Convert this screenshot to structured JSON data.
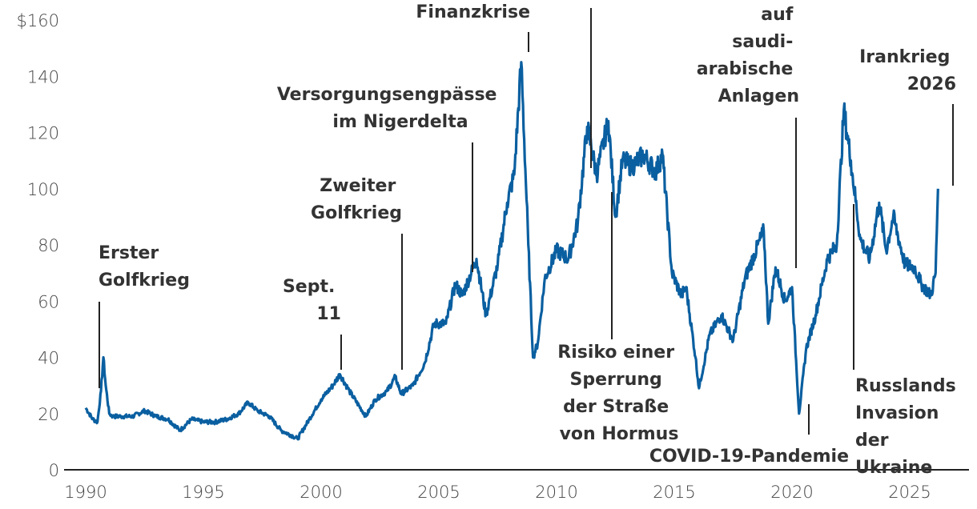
{
  "chart_data": {
    "type": "line",
    "title": "",
    "xlabel": "",
    "ylabel": "",
    "xlim": [
      1989.5,
      2027.2
    ],
    "ylim": [
      0,
      160
    ],
    "grid": false,
    "line_color": "#0a5fa0",
    "x_ticks": [
      "1990",
      "1995",
      "2000",
      "2005",
      "2010",
      "2015",
      "2020",
      "2025"
    ],
    "y_ticks": [
      "0",
      "20",
      "40",
      "60",
      "80",
      "100",
      "120",
      "140",
      "$160"
    ],
    "series": [
      {
        "x": [
          1990.0,
          1990.3,
          1990.5,
          1990.65,
          1990.75,
          1990.85,
          1991.0,
          1991.15,
          1991.5,
          1992.0,
          1992.5,
          1993.0,
          1993.5,
          1994.0,
          1994.5,
          1995.0,
          1995.5,
          1996.0,
          1996.5,
          1996.9,
          1997.3,
          1997.8,
          1998.3,
          1998.8,
          1999.0,
          1999.5,
          2000.0,
          2000.5,
          2000.8,
          2001.2,
          2001.9,
          2002.3,
          2002.8,
          2003.15,
          2003.4,
          2003.9,
          2004.4,
          2004.8,
          2005.3,
          2005.7,
          2006.0,
          2006.6,
          2007.0,
          2007.5,
          2007.9,
          2008.2,
          2008.5,
          2008.8,
          2009.0,
          2009.2,
          2009.5,
          2010.0,
          2010.5,
          2010.9,
          2011.3,
          2011.7,
          2012.2,
          2012.5,
          2012.8,
          2013.2,
          2013.7,
          2014.2,
          2014.5,
          2014.9,
          2015.3,
          2015.5,
          2015.9,
          2016.05,
          2016.5,
          2017.0,
          2017.5,
          2018.0,
          2018.8,
          2018.99,
          2019.3,
          2019.7,
          2020.0,
          2020.3,
          2020.6,
          2021.0,
          2021.5,
          2021.9,
          2022.2,
          2022.5,
          2022.9,
          2023.3,
          2023.7,
          2024.0,
          2024.3,
          2024.8,
          2025.2,
          2025.5,
          2025.9,
          2026.1,
          2026.2
        ],
        "values": [
          22,
          18,
          17,
          28,
          40,
          30,
          20,
          19,
          19,
          19,
          21,
          19,
          18,
          14,
          18,
          17,
          17,
          18,
          20,
          24,
          21,
          19,
          14,
          12,
          11,
          18,
          25,
          30,
          34,
          28,
          19,
          25,
          28,
          33,
          27,
          30,
          38,
          52,
          52,
          66,
          62,
          75,
          55,
          73,
          95,
          105,
          145,
          80,
          40,
          45,
          68,
          78,
          75,
          88,
          122,
          105,
          124,
          90,
          110,
          108,
          112,
          106,
          112,
          70,
          62,
          65,
          40,
          29,
          48,
          55,
          46,
          68,
          85,
          52,
          72,
          60,
          65,
          20,
          43,
          55,
          75,
          80,
          128,
          110,
          82,
          75,
          95,
          78,
          90,
          73,
          72,
          66,
          62,
          70,
          100
        ]
      }
    ],
    "annotations": {
      "erster_golfkrieg": [
        "Erster",
        "Golfkrieg"
      ],
      "sept11": [
        "Sept.",
        "11"
      ],
      "zweiter_golfkrieg": [
        "Zweiter",
        "Golfkrieg"
      ],
      "nigerdelta": [
        "Versorgungsengpässe",
        "im Nigerdelta"
      ],
      "finanzkrise": [
        "Finanzkrise"
      ],
      "saudi": [
        "auf",
        "saudi-",
        "arabische",
        "Anlagen"
      ],
      "irankrieg": [
        "Irankrieg",
        "2026"
      ],
      "hormus": [
        "Risiko einer",
        "Sperrung",
        "der Straße",
        "von Hormus"
      ],
      "covid": [
        "COVID-19-Pandemie"
      ],
      "russland": [
        "Russlands",
        "Invasion",
        "der",
        "Ukraine"
      ]
    }
  }
}
